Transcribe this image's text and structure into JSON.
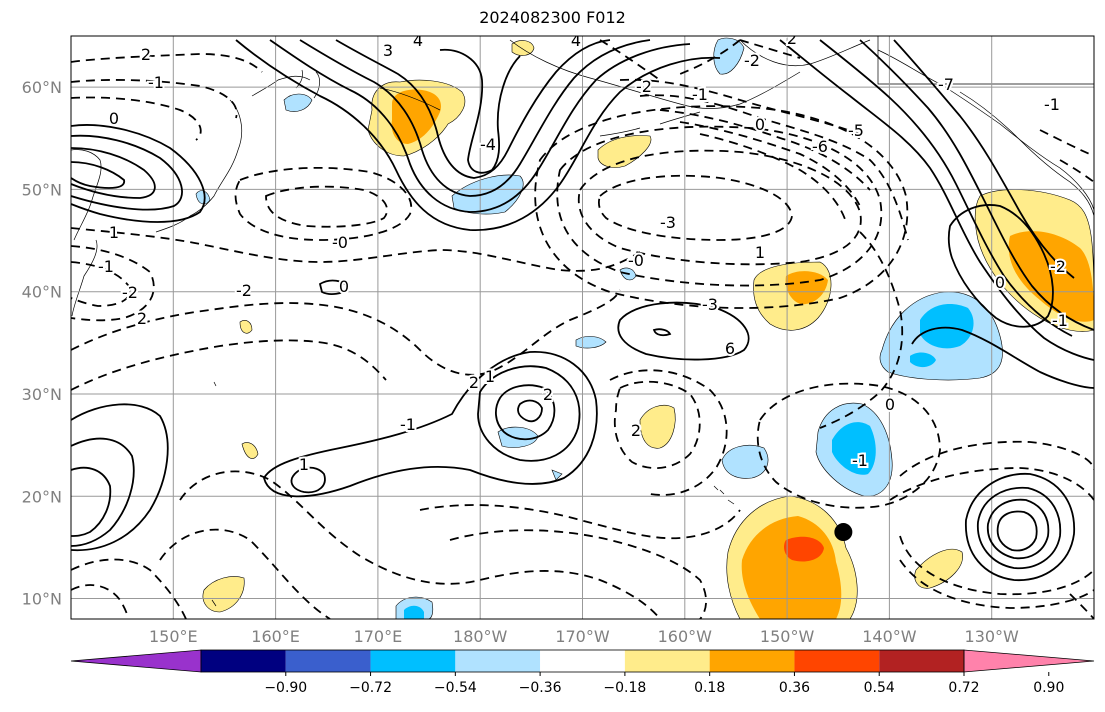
{
  "title": "2024082300 F012",
  "map": {
    "lat_ticks": [
      {
        "label": "60°N",
        "lat": 60
      },
      {
        "label": "50°N",
        "lat": 50
      },
      {
        "label": "40°N",
        "lat": 40
      },
      {
        "label": "30°N",
        "lat": 30
      },
      {
        "label": "20°N",
        "lat": 20
      },
      {
        "label": "10°N",
        "lat": 10
      }
    ],
    "lon_ticks": [
      {
        "label": "150°E",
        "lon": 150
      },
      {
        "label": "160°E",
        "lon": 160
      },
      {
        "label": "170°E",
        "lon": 170
      },
      {
        "label": "180°W",
        "lon": 180
      },
      {
        "label": "170°W",
        "lon": 190
      },
      {
        "label": "160°W",
        "lon": 200
      },
      {
        "label": "150°W",
        "lon": 210
      },
      {
        "label": "140°W",
        "lon": 220
      },
      {
        "label": "130°W",
        "lon": 230
      }
    ],
    "lon_range": [
      140,
      240
    ],
    "lat_range": [
      8,
      65
    ],
    "contour_labels": [
      "2",
      "-1",
      "0",
      "-2",
      "3",
      "4",
      "-4",
      "-3",
      "1",
      "-0",
      "-2",
      "2",
      "1",
      "-1",
      "0",
      "-0",
      "-3",
      "6",
      "4",
      "-2",
      "2",
      "-2",
      "-1",
      "0",
      "-6",
      "-7",
      "-5",
      "-1",
      "-2",
      "0",
      "-1",
      "1",
      "2",
      "2",
      "-1",
      "1",
      "2",
      "-1",
      "0"
    ],
    "storm_marker": {
      "lat": 16.5,
      "lon": 215.5
    }
  },
  "colorbar": {
    "ticks": [
      "−0.90",
      "−0.72",
      "−0.54",
      "−0.36",
      "−0.18",
      "0.18",
      "0.36",
      "0.54",
      "0.72",
      "0.90"
    ],
    "colors": [
      "#9932cc",
      "#000080",
      "#3a5fcd",
      "#00bfff",
      "#b0e2ff",
      "#ffffff",
      "#ffec8b",
      "#ffa500",
      "#ff4500",
      "#b22222",
      "#ff82ab"
    ],
    "extend": "both"
  }
}
